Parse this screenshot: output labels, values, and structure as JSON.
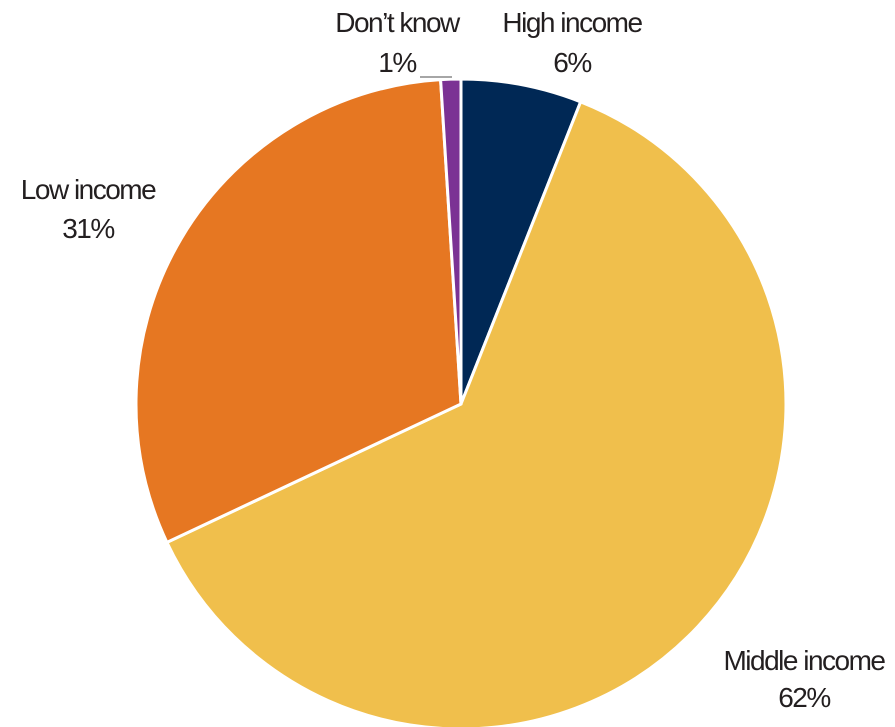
{
  "chart_data": {
    "type": "pie",
    "title": "",
    "start_angle_deg": 0,
    "direction": "clockwise",
    "slices": [
      {
        "label": "High income",
        "value": 6,
        "value_label": "6%",
        "color": "#002855"
      },
      {
        "label": "Middle income",
        "value": 62,
        "value_label": "62%",
        "color": "#f0bf4c"
      },
      {
        "label": "Low income",
        "value": 31,
        "value_label": "31%",
        "color": "#e67722"
      },
      {
        "label": "Don’t know",
        "value": 1,
        "value_label": "1%",
        "color": "#7b3294"
      }
    ]
  }
}
